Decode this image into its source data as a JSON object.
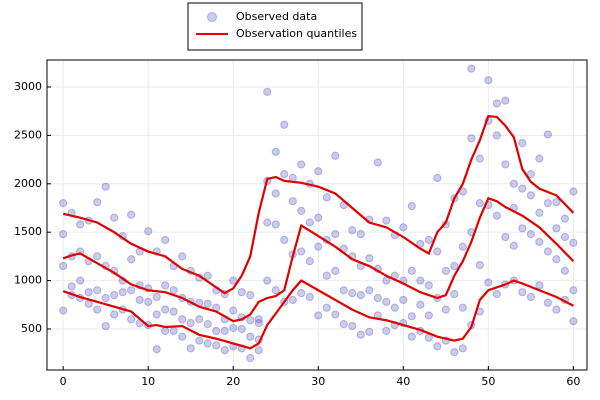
{
  "chart_data": {
    "type": "scatter",
    "xlim": [
      -1.9,
      61.6
    ],
    "ylim": [
      76,
      3279
    ],
    "xticks": [
      0,
      10,
      20,
      30,
      40,
      50,
      60
    ],
    "yticks": [
      500,
      1000,
      1500,
      2000,
      2500,
      3000
    ],
    "grid": true,
    "legend": "top",
    "series": [
      {
        "name": "Observed data",
        "type": "scatter",
        "color": "#4444bb",
        "x": [
          0,
          0,
          0,
          0,
          1,
          1,
          1,
          1,
          2,
          2,
          2,
          2,
          3,
          3,
          3,
          3,
          4,
          4,
          4,
          4,
          5,
          5,
          5,
          5,
          6,
          6,
          6,
          6,
          7,
          7,
          7,
          7,
          8,
          8,
          8,
          8,
          9,
          9,
          9,
          9,
          10,
          10,
          10,
          10,
          11,
          11,
          11,
          11,
          12,
          12,
          12,
          12,
          13,
          13,
          13,
          13,
          14,
          14,
          14,
          14,
          15,
          15,
          15,
          15,
          16,
          16,
          16,
          16,
          17,
          17,
          17,
          17,
          18,
          18,
          18,
          18,
          19,
          19,
          19,
          19,
          20,
          20,
          20,
          20,
          21,
          21,
          21,
          21,
          22,
          22,
          22,
          22,
          23,
          23,
          23,
          23,
          24,
          24,
          24,
          24,
          25,
          25,
          25,
          25,
          26,
          26,
          26,
          26,
          27,
          27,
          27,
          27,
          28,
          28,
          28,
          28,
          29,
          29,
          29,
          29,
          30,
          30,
          30,
          30,
          31,
          31,
          31,
          31,
          32,
          32,
          32,
          32,
          33,
          33,
          33,
          33,
          34,
          34,
          34,
          34,
          35,
          35,
          35,
          35,
          36,
          36,
          36,
          36,
          37,
          37,
          37,
          37,
          38,
          38,
          38,
          38,
          39,
          39,
          39,
          39,
          40,
          40,
          40,
          40,
          41,
          41,
          41,
          41,
          42,
          42,
          42,
          42,
          43,
          43,
          43,
          43,
          44,
          44,
          44,
          44,
          45,
          45,
          45,
          45,
          46,
          46,
          46,
          46,
          47,
          47,
          47,
          47,
          48,
          48,
          48,
          48,
          49,
          49,
          49,
          49,
          50,
          50,
          50,
          50,
          51,
          51,
          51,
          51,
          52,
          52,
          52,
          52,
          53,
          53,
          53,
          53,
          54,
          54,
          54,
          54,
          55,
          55,
          55,
          55,
          56,
          56,
          56,
          56,
          57,
          57,
          57,
          57,
          58,
          58,
          58,
          58,
          59,
          59,
          59,
          59,
          60,
          60,
          60,
          60
        ],
        "values": [
          1800,
          1480,
          1150,
          690,
          1700,
          1250,
          940,
          850,
          1580,
          1300,
          1000,
          820,
          1620,
          1200,
          880,
          760,
          1810,
          1250,
          900,
          700,
          1970,
          1150,
          820,
          530,
          1650,
          1100,
          850,
          650,
          1460,
          1000,
          880,
          700,
          1680,
          1220,
          900,
          600,
          1300,
          950,
          800,
          560,
          1510,
          920,
          780,
          540,
          1300,
          830,
          650,
          290,
          1420,
          950,
          700,
          480,
          1150,
          900,
          680,
          480,
          1250,
          820,
          600,
          420,
          1100,
          780,
          560,
          300,
          1030,
          770,
          600,
          380,
          1050,
          760,
          550,
          350,
          900,
          720,
          480,
          330,
          860,
          600,
          480,
          280,
          1000,
          690,
          510,
          320,
          880,
          620,
          500,
          300,
          850,
          590,
          420,
          200,
          600,
          560,
          390,
          280,
          2950,
          2030,
          1600,
          1000,
          2330,
          1900,
          1580,
          900,
          2610,
          2100,
          1420,
          780,
          2060,
          1820,
          1270,
          800,
          2200,
          1720,
          1300,
          870,
          2000,
          1600,
          1200,
          830,
          2130,
          1650,
          1350,
          640,
          1860,
          1420,
          1050,
          720,
          2290,
          1480,
          1100,
          650,
          1780,
          1330,
          900,
          550,
          1520,
          1250,
          870,
          530,
          1480,
          1150,
          850,
          440,
          1630,
          1230,
          900,
          470,
          2220,
          1120,
          820,
          640,
          1620,
          1000,
          780,
          480,
          1470,
          1050,
          720,
          540,
          1550,
          1000,
          800,
          560,
          1770,
          1100,
          630,
          420,
          1380,
          1000,
          750,
          480,
          1420,
          950,
          640,
          410,
          2060,
          1300,
          820,
          320,
          1580,
          1100,
          700,
          380,
          1850,
          1150,
          860,
          260,
          1920,
          1350,
          720,
          300,
          3190,
          2470,
          1500,
          540,
          2260,
          1800,
          1160,
          680,
          3070,
          2650,
          1780,
          980,
          2830,
          2500,
          1670,
          860,
          2860,
          2200,
          1450,
          960,
          2000,
          1750,
          1360,
          1000,
          2420,
          1950,
          1540,
          880,
          2100,
          1880,
          1480,
          830,
          2260,
          1700,
          1400,
          950,
          2510,
          1800,
          1300,
          770,
          1810,
          1540,
          1220,
          700,
          1640,
          1450,
          1100,
          800,
          1920,
          1390,
          900,
          580
        ]
      },
      {
        "name": "Observation quantiles",
        "type": "line",
        "color": "#e00000",
        "x": [
          0,
          2,
          4,
          6,
          8,
          10,
          12,
          14,
          16,
          18,
          19,
          20,
          21,
          22,
          23,
          24,
          25,
          26,
          28,
          30,
          32,
          34,
          36,
          38,
          40,
          42,
          43,
          44,
          45,
          46,
          47,
          48,
          49,
          50,
          51,
          52,
          53,
          54,
          55,
          56,
          58,
          60
        ],
        "values": [
          1690,
          1650,
          1600,
          1500,
          1380,
          1300,
          1250,
          1120,
          1050,
          930,
          870,
          920,
          1050,
          1250,
          1700,
          2050,
          2070,
          2030,
          2010,
          1970,
          1900,
          1750,
          1600,
          1550,
          1450,
          1330,
          1280,
          1500,
          1600,
          1850,
          2000,
          2250,
          2450,
          2700,
          2690,
          2600,
          2480,
          2150,
          2020,
          1950,
          1880,
          1700
        ]
      },
      {
        "type": "line",
        "color": "#e00000",
        "x": [
          0,
          1,
          2,
          4,
          6,
          8,
          10,
          12,
          14,
          16,
          18,
          20,
          21,
          22,
          23,
          24,
          25,
          26,
          27,
          28,
          30,
          32,
          34,
          36,
          38,
          40,
          42,
          44,
          45,
          46,
          47,
          48,
          49,
          50,
          51,
          52,
          54,
          56,
          58,
          60
        ],
        "values": [
          1230,
          1260,
          1280,
          1180,
          1080,
          960,
          900,
          880,
          820,
          730,
          680,
          580,
          600,
          650,
          780,
          820,
          840,
          900,
          1250,
          1570,
          1460,
          1350,
          1220,
          1150,
          1050,
          970,
          880,
          820,
          850,
          1050,
          1200,
          1400,
          1650,
          1850,
          1820,
          1760,
          1670,
          1550,
          1380,
          1200
        ]
      },
      {
        "type": "line",
        "color": "#e00000",
        "x": [
          0,
          2,
          4,
          6,
          8,
          10,
          11,
          12,
          14,
          16,
          18,
          20,
          22,
          23,
          24,
          25,
          26,
          27,
          28,
          30,
          32,
          34,
          36,
          38,
          40,
          42,
          44,
          46,
          47,
          48,
          49,
          50,
          52,
          53,
          54,
          56,
          58,
          60
        ],
        "values": [
          890,
          830,
          780,
          730,
          680,
          530,
          540,
          520,
          530,
          440,
          400,
          350,
          300,
          350,
          540,
          660,
          780,
          900,
          1000,
          900,
          800,
          700,
          620,
          590,
          540,
          490,
          420,
          380,
          400,
          520,
          800,
          900,
          960,
          1000,
          970,
          900,
          830,
          740
        ]
      }
    ]
  }
}
